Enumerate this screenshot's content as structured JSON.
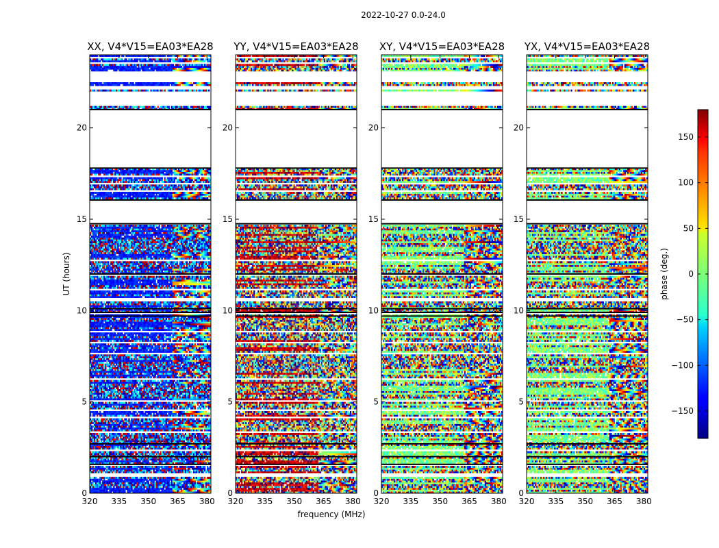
{
  "figure": {
    "suptitle": "2022-10-27 0.0-24.0"
  },
  "chart_data": {
    "type": "heatmap",
    "xlabel": "frequency (MHz)",
    "ylabel": "UT (hours)",
    "xlim": [
      320,
      382
    ],
    "ylim": [
      0,
      24
    ],
    "xticks": [
      320,
      335,
      350,
      365,
      380
    ],
    "yticks": [
      0,
      5,
      10,
      15,
      20
    ],
    "panels": [
      {
        "title": "XX, V4*V15=EA03*EA28",
        "offset": 0.15,
        "scale": 0.6,
        "seed": 11
      },
      {
        "title": "YY, V4*V15=EA03*EA28",
        "offset": 0.93,
        "scale": 1.0,
        "seed": 23
      },
      {
        "title": "XY, V4*V15=EA03*EA28",
        "offset": 0.5,
        "scale": 1.0,
        "seed": 37
      },
      {
        "title": "YX, V4*V15=EA03*EA28",
        "offset": 0.5,
        "scale": 1.0,
        "seed": 53
      }
    ],
    "colorbar": {
      "label": "phase (deg.)",
      "range": [
        -180,
        180
      ],
      "ticks": [
        -150,
        -100,
        -50,
        0,
        50,
        100,
        150
      ],
      "colormap": "jet"
    },
    "flagged_ut_ranges": [
      [
        0.95,
        1.05
      ],
      [
        1.55,
        1.6
      ],
      [
        2.3,
        2.35
      ],
      [
        3.3,
        3.35
      ],
      [
        4.1,
        4.15
      ],
      [
        4.55,
        4.6
      ],
      [
        5.05,
        5.1
      ],
      [
        5.5,
        5.55
      ],
      [
        6.25,
        6.3
      ],
      [
        7.6,
        7.65
      ],
      [
        8.2,
        8.25
      ],
      [
        8.85,
        8.9
      ],
      [
        9.85,
        9.95
      ],
      [
        10.55,
        10.65
      ],
      [
        11.1,
        11.15
      ],
      [
        11.9,
        11.95
      ],
      [
        12.75,
        12.8
      ],
      [
        13.3,
        13.35
      ],
      [
        14.75,
        16.05
      ],
      [
        16.55,
        16.6
      ],
      [
        16.95,
        17.0
      ],
      [
        17.3,
        17.35
      ],
      [
        17.8,
        21.0
      ],
      [
        21.2,
        21.95
      ],
      [
        22.1,
        22.3
      ],
      [
        22.5,
        23.1
      ],
      [
        23.5,
        23.55
      ],
      [
        23.85,
        23.9
      ]
    ],
    "dark_ut_lines": [
      1.58,
      2.0,
      2.7,
      9.7,
      9.9,
      10.1,
      12.0,
      14.75,
      16.05,
      17.8,
      21.0
    ]
  }
}
